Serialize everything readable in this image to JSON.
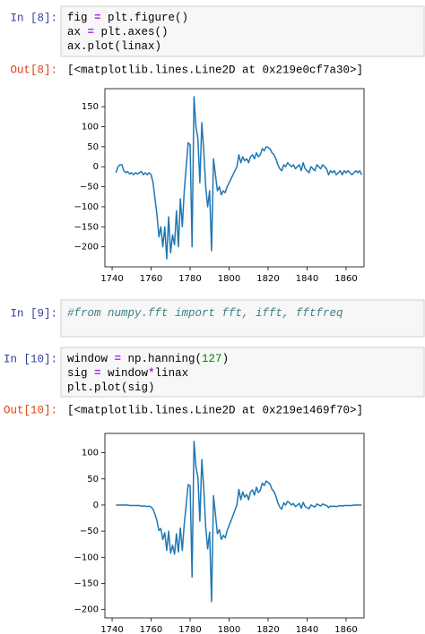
{
  "cells": [
    {
      "prompt": "In [8]:",
      "code": [
        "fig = plt.figure()",
        "ax = plt.axes()",
        "ax.plot(linax)"
      ],
      "out_prompt": "Out[8]:",
      "output": "[<matplotlib.lines.Line2D at 0x219e0cf7a30>]"
    },
    {
      "prompt": "In [9]:",
      "code": [
        "#from numpy.fft import fft, ifft, fftfreq"
      ]
    },
    {
      "prompt": "In [10]:",
      "code": [
        "window = np.hanning(127)",
        "sig = window*linax",
        "plt.plot(sig)"
      ],
      "out_prompt": "Out[10]:",
      "output": "[<matplotlib.lines.Line2D at 0x219e1469f70>]"
    }
  ],
  "chart_data": [
    {
      "type": "line",
      "color": "#1f77b4",
      "x": [
        1742,
        1743,
        1744,
        1745,
        1746,
        1747,
        1748,
        1749,
        1750,
        1751,
        1752,
        1753,
        1754,
        1755,
        1756,
        1757,
        1758,
        1759,
        1760,
        1761,
        1762,
        1763,
        1764,
        1765,
        1766,
        1767,
        1768,
        1769,
        1770,
        1771,
        1772,
        1773,
        1774,
        1775,
        1776,
        1777,
        1778,
        1779,
        1780,
        1781,
        1782,
        1783,
        1784,
        1785,
        1786,
        1787,
        1788,
        1789,
        1790,
        1791,
        1792,
        1793,
        1794,
        1795,
        1796,
        1797,
        1798,
        1799,
        1800,
        1801,
        1802,
        1803,
        1804,
        1805,
        1806,
        1807,
        1808,
        1809,
        1810,
        1811,
        1812,
        1813,
        1814,
        1815,
        1816,
        1817,
        1818,
        1819,
        1820,
        1821,
        1822,
        1823,
        1824,
        1825,
        1826,
        1827,
        1828,
        1829,
        1830,
        1831,
        1832,
        1833,
        1834,
        1835,
        1836,
        1837,
        1838,
        1839,
        1840,
        1841,
        1842,
        1843,
        1844,
        1845,
        1846,
        1847,
        1848,
        1849,
        1850,
        1851,
        1852,
        1853,
        1854,
        1855,
        1856,
        1857,
        1858,
        1859,
        1860,
        1861,
        1862,
        1863,
        1864,
        1865,
        1866,
        1867,
        1868
      ],
      "values": [
        -15,
        0,
        5,
        5,
        -10,
        -15,
        -12,
        -18,
        -15,
        -20,
        -15,
        -18,
        -15,
        -12,
        -20,
        -15,
        -20,
        -15,
        -20,
        -40,
        -80,
        -120,
        -175,
        -150,
        -200,
        -150,
        -230,
        -125,
        -215,
        -170,
        -195,
        -110,
        -200,
        -80,
        -150,
        -60,
        0,
        60,
        55,
        -200,
        175,
        100,
        70,
        -40,
        110,
        40,
        -50,
        -100,
        -60,
        -210,
        20,
        -20,
        -60,
        -50,
        -70,
        -60,
        -65,
        -50,
        -40,
        -30,
        -20,
        -10,
        0,
        30,
        10,
        25,
        15,
        20,
        10,
        25,
        30,
        20,
        35,
        25,
        30,
        45,
        40,
        50,
        48,
        45,
        35,
        30,
        20,
        5,
        -5,
        -10,
        5,
        0,
        10,
        5,
        0,
        5,
        -5,
        0,
        5,
        -10,
        10,
        -5,
        -10,
        -15,
        0,
        -5,
        -10,
        5,
        0,
        -5,
        5,
        0,
        -5,
        -20,
        -10,
        -15,
        -10,
        -20,
        -15,
        -10,
        -20,
        -10,
        -15,
        -10,
        -15,
        -20,
        -15,
        -10,
        -15,
        -10,
        -20
      ],
      "xlim": [
        1736.3,
        1869.2
      ],
      "ylim": [
        -250,
        195
      ],
      "xticks": [
        1740,
        1760,
        1780,
        1800,
        1820,
        1840,
        1860
      ],
      "yticks": [
        {
          "value": -200,
          "label": "−200"
        },
        {
          "value": -150,
          "label": "−150"
        },
        {
          "value": -100,
          "label": "−100"
        },
        {
          "value": -50,
          "label": "−50"
        },
        0,
        50,
        100,
        150
      ]
    },
    {
      "type": "line",
      "color": "#1f77b4",
      "x": [
        1742,
        1743,
        1744,
        1745,
        1746,
        1747,
        1748,
        1749,
        1750,
        1751,
        1752,
        1753,
        1754,
        1755,
        1756,
        1757,
        1758,
        1759,
        1760,
        1761,
        1762,
        1763,
        1764,
        1765,
        1766,
        1767,
        1768,
        1769,
        1770,
        1771,
        1772,
        1773,
        1774,
        1775,
        1776,
        1777,
        1778,
        1779,
        1780,
        1781,
        1782,
        1783,
        1784,
        1785,
        1786,
        1787,
        1788,
        1789,
        1790,
        1791,
        1792,
        1793,
        1794,
        1795,
        1796,
        1797,
        1798,
        1799,
        1800,
        1801,
        1802,
        1803,
        1804,
        1805,
        1806,
        1807,
        1808,
        1809,
        1810,
        1811,
        1812,
        1813,
        1814,
        1815,
        1816,
        1817,
        1818,
        1819,
        1820,
        1821,
        1822,
        1823,
        1824,
        1825,
        1826,
        1827,
        1828,
        1829,
        1830,
        1831,
        1832,
        1833,
        1834,
        1835,
        1836,
        1837,
        1838,
        1839,
        1840,
        1841,
        1842,
        1843,
        1844,
        1845,
        1846,
        1847,
        1848,
        1849,
        1850,
        1851,
        1852,
        1853,
        1854,
        1855,
        1856,
        1857,
        1858,
        1859,
        1860,
        1861,
        1862,
        1863,
        1864,
        1865,
        1866,
        1867,
        1868
      ],
      "values": [
        0,
        0,
        0,
        0,
        0,
        0,
        0,
        -1,
        -1,
        -1,
        -1,
        -1,
        -1,
        -2,
        -2,
        -2,
        -3,
        -2,
        -4,
        -8,
        -18,
        -30,
        -49,
        -45,
        -66,
        -53,
        -87,
        -50,
        -92,
        -77,
        -94,
        -55,
        -90,
        -44,
        -87,
        -36,
        0,
        39,
        37,
        -138,
        122,
        73,
        53,
        -31,
        87,
        32,
        -42,
        -84,
        -52,
        -185,
        18,
        -18,
        -55,
        -47,
        -66,
        -58,
        -63,
        -49,
        -39,
        -30,
        -20,
        -10,
        0,
        30,
        10,
        25,
        15,
        20,
        10,
        25,
        29,
        19,
        34,
        24,
        28,
        42,
        37,
        46,
        43,
        40,
        30,
        26,
        17,
        4,
        -4,
        -8,
        4,
        0,
        7,
        4,
        0,
        3,
        -3,
        0,
        3,
        -6,
        5,
        -3,
        -5,
        -7,
        0,
        -2,
        -4,
        2,
        0,
        -2,
        2,
        0,
        -1,
        -5,
        -2,
        -3,
        -2,
        -3,
        -2,
        -1,
        -2,
        -1,
        -1,
        -1,
        -1,
        -1,
        0,
        0,
        0,
        0,
        0
      ],
      "xlim": [
        1736.3,
        1869.2
      ],
      "ylim": [
        -216,
        137
      ],
      "xticks": [
        1740,
        1760,
        1780,
        1800,
        1820,
        1840,
        1860
      ],
      "yticks": [
        {
          "value": -200,
          "label": "−200"
        },
        {
          "value": -150,
          "label": "−150"
        },
        {
          "value": -100,
          "label": "−100"
        },
        {
          "value": -50,
          "label": "−50"
        },
        0,
        50,
        100
      ]
    }
  ]
}
